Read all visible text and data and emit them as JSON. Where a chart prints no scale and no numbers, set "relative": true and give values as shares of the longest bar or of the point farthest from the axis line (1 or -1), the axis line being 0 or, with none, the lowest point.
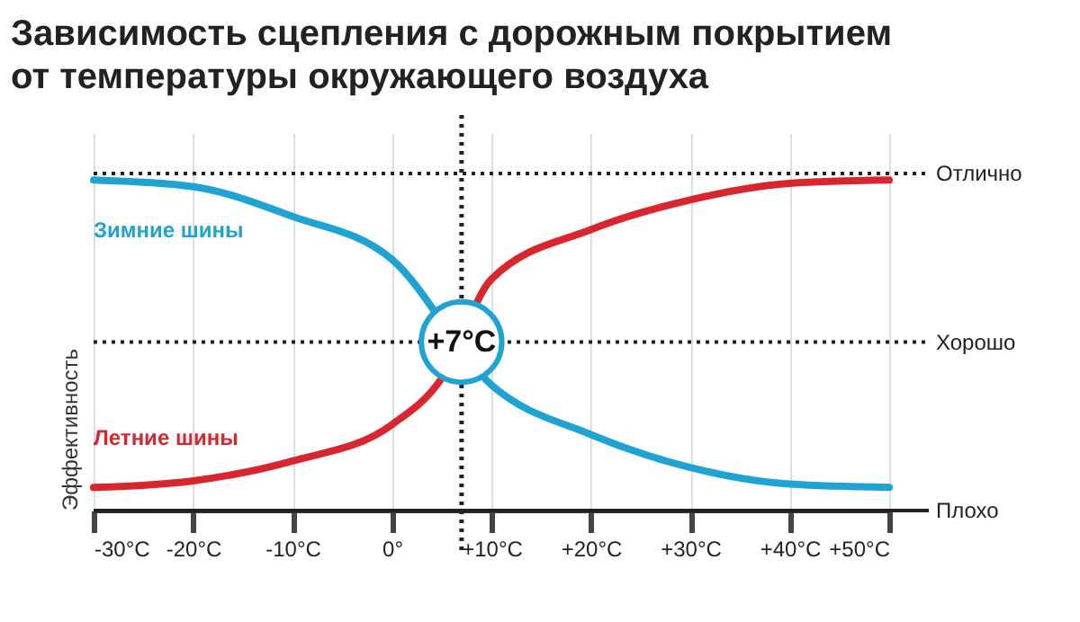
{
  "chart_data": {
    "type": "line",
    "title": "Зависимость сцепления с дорожным покрытием\nот температуры окружающего воздуха",
    "ylabel": "Эффективность",
    "relative": true,
    "x": [
      -30,
      -20,
      -10,
      0,
      5,
      10,
      20,
      30,
      40,
      50
    ],
    "series": [
      {
        "name": "Зимние шины",
        "color": "#1fa3d3",
        "values": [
          1,
          0.98,
          0.89,
          0.76,
          null,
          0.38,
          0.23,
          0.13,
          0.08,
          0.07
        ]
      },
      {
        "name": "Летние шины",
        "color": "#d9262e",
        "values": [
          0.07,
          0.09,
          0.15,
          0.26,
          0.4,
          0.7,
          0.85,
          0.94,
          0.99,
          1
        ]
      }
    ],
    "xlim": [
      -30,
      50
    ],
    "xticks": [
      {
        "value": -30,
        "label": "-30°C"
      },
      {
        "value": -20,
        "label": "-20°C"
      },
      {
        "value": -10,
        "label": "-10°C"
      },
      {
        "value": 0,
        "label": "0°"
      },
      {
        "value": 10,
        "label": "+10°C"
      },
      {
        "value": 20,
        "label": "+20°C"
      },
      {
        "value": 30,
        "label": "+30°C"
      },
      {
        "value": 40,
        "label": "+40°C"
      },
      {
        "value": 50,
        "label": "+50°C"
      }
    ],
    "ref_lines": [
      {
        "axis": "x",
        "value": 7,
        "line_style": "dotted"
      },
      {
        "axis": "y",
        "value": 0,
        "label": "Плохо",
        "line_style": "solid"
      },
      {
        "axis": "y",
        "value": 0.51,
        "label": "Хорошо",
        "line_style": "dotted"
      },
      {
        "axis": "y",
        "value": 1.02,
        "label": "Отлично",
        "line_style": "dotted"
      }
    ],
    "annotations": [
      {
        "text": "+7°C",
        "x": 7,
        "y": 0.51
      }
    ],
    "grid": "x",
    "legend": false,
    "marker": "none",
    "line_style": "solid"
  }
}
